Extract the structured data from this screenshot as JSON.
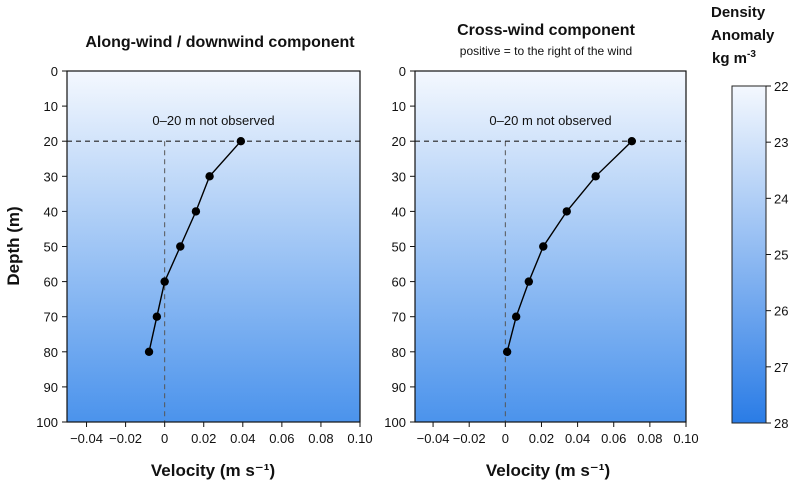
{
  "chart_data": [
    {
      "type": "line",
      "title": "Along-wind / downwind component",
      "subtitle": "",
      "xlabel": "Velocity (m s⁻¹)",
      "ylabel": "Depth (m)",
      "xlim": [
        -0.05,
        0.1
      ],
      "ylim": [
        0,
        100
      ],
      "y_inverted": true,
      "xticks": [
        -0.04,
        -0.02,
        0,
        0.02,
        0.04,
        0.06,
        0.08,
        0.1
      ],
      "xtick_labels": [
        "−0.04",
        "−0.02",
        "0",
        "0.02",
        "0.04",
        "0.06",
        "0.08",
        "0.10"
      ],
      "yticks": [
        0,
        10,
        20,
        30,
        40,
        50,
        60,
        70,
        80,
        90,
        100
      ],
      "annotation": "0–20 m not observed",
      "reference_depth": 20,
      "series": [
        {
          "x": [
            0.039,
            0.023,
            0.016,
            0.008,
            0.0,
            -0.004,
            -0.008
          ],
          "y": [
            20,
            30,
            40,
            50,
            60,
            70,
            80
          ]
        }
      ]
    },
    {
      "type": "line",
      "title": "Cross-wind component",
      "subtitle": "positive = to the right of the wind",
      "xlabel": "Velocity (m s⁻¹)",
      "ylabel": "",
      "xlim": [
        -0.05,
        0.1
      ],
      "ylim": [
        0,
        100
      ],
      "y_inverted": true,
      "xticks": [
        -0.04,
        -0.02,
        0,
        0.02,
        0.04,
        0.06,
        0.08,
        0.1
      ],
      "xtick_labels": [
        "−0.04",
        "−0.02",
        "0",
        "0.02",
        "0.04",
        "0.06",
        "0.08",
        "0.10"
      ],
      "yticks": [
        0,
        10,
        20,
        30,
        40,
        50,
        60,
        70,
        80,
        90,
        100
      ],
      "annotation": "0–20 m not observed",
      "reference_depth": 20,
      "series": [
        {
          "x": [
            0.07,
            0.05,
            0.034,
            0.021,
            0.013,
            0.006,
            0.001
          ],
          "y": [
            20,
            30,
            40,
            50,
            60,
            70,
            80
          ]
        }
      ]
    }
  ],
  "colorbar": {
    "title_lines": [
      "Density",
      "Anomaly",
      "kg m"
    ],
    "title_superscript": "-3",
    "range": [
      22,
      28
    ],
    "ticks": [
      22,
      23,
      24,
      25,
      26,
      27,
      28
    ],
    "color_low": "#f4f8fe",
    "color_high": "#2a7ce6"
  },
  "colors": {
    "background_top": "#f4f8fe",
    "background_bottom": "#4b93ec",
    "line": "#000000",
    "marker": "#000000"
  }
}
